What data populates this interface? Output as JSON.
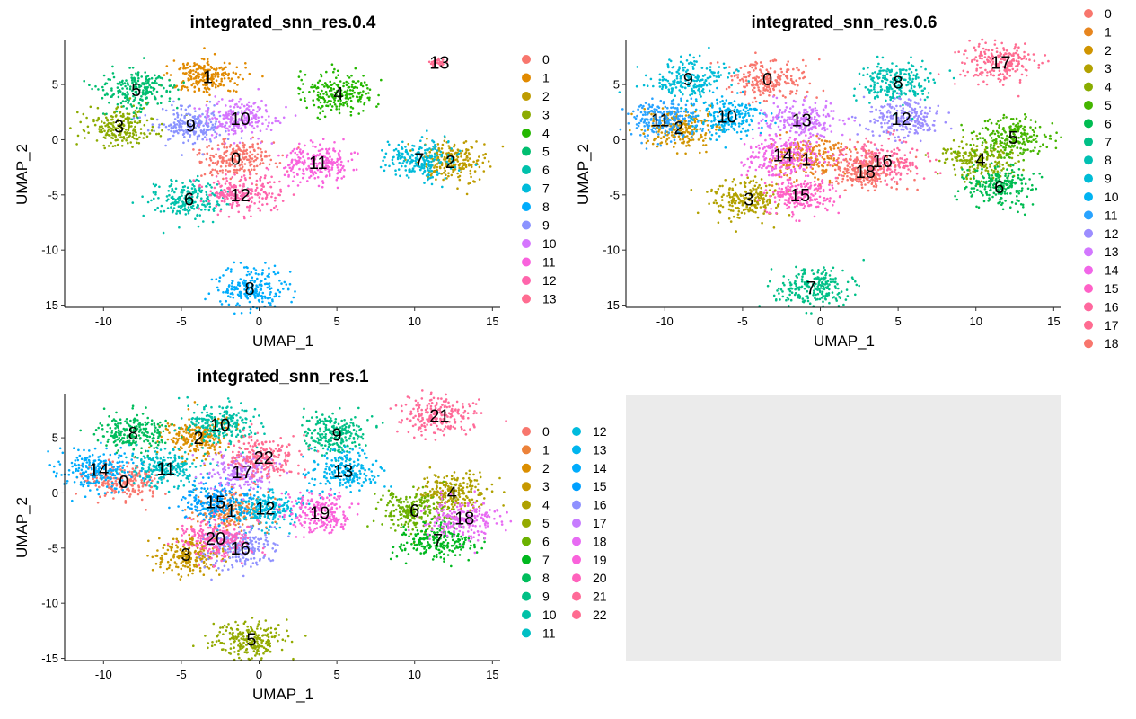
{
  "chart_data": [
    {
      "type": "scatter",
      "title": "integrated_snn_res.0.4",
      "xlabel": "UMAP_1",
      "ylabel": "UMAP_2",
      "xlim": [
        -12.5,
        15.5
      ],
      "ylim": [
        -15.2,
        9.0
      ],
      "xticks": [
        -10,
        -5,
        0,
        5,
        10,
        15
      ],
      "yticks": [
        5,
        0,
        -5,
        -10,
        -15
      ],
      "legend_placement": "right",
      "legend_columns": 1,
      "legend": [
        "0",
        "1",
        "2",
        "3",
        "4",
        "5",
        "6",
        "7",
        "8",
        "9",
        "10",
        "11",
        "12",
        "13"
      ],
      "colors": [
        "#F8766D",
        "#E18A00",
        "#BE9C00",
        "#8CAB00",
        "#24B700",
        "#00BE70",
        "#00C1AB",
        "#00BBDA",
        "#00ACFC",
        "#8B93FF",
        "#D575FE",
        "#F962DD",
        "#FF65AC",
        "#FF6C91"
      ],
      "clusters": [
        {
          "label": "0",
          "x": -1.5,
          "y": -1.7
        },
        {
          "label": "1",
          "x": -3.3,
          "y": 5.7
        },
        {
          "label": "2",
          "x": 12.3,
          "y": -2.0
        },
        {
          "label": "3",
          "x": -9.0,
          "y": 1.2
        },
        {
          "label": "4",
          "x": 5.1,
          "y": 4.2
        },
        {
          "label": "5",
          "x": -7.9,
          "y": 4.5
        },
        {
          "label": "6",
          "x": -4.5,
          "y": -5.4
        },
        {
          "label": "7",
          "x": 10.3,
          "y": -1.8
        },
        {
          "label": "8",
          "x": -0.6,
          "y": -13.5
        },
        {
          "label": "9",
          "x": -4.4,
          "y": 1.3
        },
        {
          "label": "10",
          "x": -1.2,
          "y": 1.9
        },
        {
          "label": "11",
          "x": 3.8,
          "y": -2.1
        },
        {
          "label": "12",
          "x": -1.2,
          "y": -5.0
        },
        {
          "label": "13",
          "x": 11.6,
          "y": 7.0
        }
      ]
    },
    {
      "type": "scatter",
      "title": "integrated_snn_res.0.6",
      "xlabel": "UMAP_1",
      "ylabel": "UMAP_2",
      "xlim": [
        -12.5,
        15.5
      ],
      "ylim": [
        -15.2,
        9.0
      ],
      "xticks": [
        -10,
        -5,
        0,
        5,
        10,
        15
      ],
      "yticks": [
        5,
        0,
        -5,
        -10,
        -15
      ],
      "legend_placement": "right",
      "legend_columns": 1,
      "legend": [
        "0",
        "1",
        "2",
        "3",
        "4",
        "5",
        "6",
        "7",
        "8",
        "9",
        "10",
        "11",
        "12",
        "13",
        "14",
        "15",
        "16",
        "17",
        "18"
      ],
      "colors": [
        "#F8766D",
        "#E7851E",
        "#D09400",
        "#B2A100",
        "#89AC00",
        "#45B500",
        "#00BC51",
        "#00C087",
        "#00C0B2",
        "#00BCD6",
        "#00B3F2",
        "#29A3FF",
        "#9C8DFF",
        "#D277FF",
        "#F166E8",
        "#FF61C7",
        "#FF689E",
        "#FF6C91",
        "#F8766D"
      ],
      "clusters": [
        {
          "label": "0",
          "x": -3.4,
          "y": 5.5
        },
        {
          "label": "1",
          "x": -0.9,
          "y": -1.8
        },
        {
          "label": "2",
          "x": -9.1,
          "y": 1.1
        },
        {
          "label": "3",
          "x": -4.6,
          "y": -5.4
        },
        {
          "label": "4",
          "x": 10.3,
          "y": -1.8
        },
        {
          "label": "5",
          "x": 12.4,
          "y": 0.2
        },
        {
          "label": "6",
          "x": 11.5,
          "y": -4.3
        },
        {
          "label": "7",
          "x": -0.6,
          "y": -13.4
        },
        {
          "label": "8",
          "x": 5.0,
          "y": 5.2
        },
        {
          "label": "9",
          "x": -8.5,
          "y": 5.5
        },
        {
          "label": "10",
          "x": -6.0,
          "y": 2.1
        },
        {
          "label": "11",
          "x": -10.3,
          "y": 1.8
        },
        {
          "label": "12",
          "x": 5.2,
          "y": 1.9
        },
        {
          "label": "13",
          "x": -1.2,
          "y": 1.8
        },
        {
          "label": "14",
          "x": -2.4,
          "y": -1.4
        },
        {
          "label": "15",
          "x": -1.3,
          "y": -5.0
        },
        {
          "label": "16",
          "x": 4.0,
          "y": -1.9
        },
        {
          "label": "17",
          "x": 11.6,
          "y": 7.0
        },
        {
          "label": "18",
          "x": 2.9,
          "y": -2.9
        }
      ]
    },
    {
      "type": "scatter",
      "title": "integrated_snn_res.1",
      "xlabel": "UMAP_1",
      "ylabel": "UMAP_2",
      "xlim": [
        -12.5,
        15.5
      ],
      "ylim": [
        -15.2,
        9.0
      ],
      "xticks": [
        -10,
        -5,
        0,
        5,
        10,
        15
      ],
      "yticks": [
        5,
        0,
        -5,
        -10,
        -15
      ],
      "legend_placement": "right",
      "legend_columns": 2,
      "legend": [
        "0",
        "1",
        "2",
        "3",
        "4",
        "5",
        "6",
        "7",
        "8",
        "9",
        "10",
        "11",
        "12",
        "13",
        "14",
        "15",
        "16",
        "17",
        "18",
        "19",
        "20",
        "21",
        "22"
      ],
      "colors": [
        "#F8766D",
        "#EC8239",
        "#DB8E00",
        "#C79800",
        "#AFA100",
        "#93AA00",
        "#6BB100",
        "#00B81F",
        "#00BD5C",
        "#00C085",
        "#00C1A7",
        "#00BFC4",
        "#00BBDD",
        "#00B5EE",
        "#00ACFC",
        "#00A0FF",
        "#8F91FF",
        "#C77CFF",
        "#E76BF3",
        "#FA62DB",
        "#FF62BC",
        "#FF6A98",
        "#FF6C91"
      ],
      "clusters": [
        {
          "label": "0",
          "x": -8.7,
          "y": 1.0
        },
        {
          "label": "1",
          "x": -1.8,
          "y": -1.6
        },
        {
          "label": "2",
          "x": -3.9,
          "y": 5.0
        },
        {
          "label": "3",
          "x": -4.7,
          "y": -5.6
        },
        {
          "label": "4",
          "x": 12.4,
          "y": 0.0
        },
        {
          "label": "5",
          "x": -0.5,
          "y": -13.3
        },
        {
          "label": "6",
          "x": 10.0,
          "y": -1.6
        },
        {
          "label": "7",
          "x": 11.5,
          "y": -4.3
        },
        {
          "label": "8",
          "x": -8.1,
          "y": 5.4
        },
        {
          "label": "9",
          "x": 5.0,
          "y": 5.3
        },
        {
          "label": "10",
          "x": -2.5,
          "y": 6.2
        },
        {
          "label": "11",
          "x": -6.0,
          "y": 2.2
        },
        {
          "label": "12",
          "x": 0.4,
          "y": -1.4
        },
        {
          "label": "13",
          "x": 5.4,
          "y": 2.0
        },
        {
          "label": "14",
          "x": -10.3,
          "y": 2.1
        },
        {
          "label": "15",
          "x": -2.8,
          "y": -0.8
        },
        {
          "label": "16",
          "x": -1.2,
          "y": -5.0
        },
        {
          "label": "17",
          "x": -1.1,
          "y": 1.9
        },
        {
          "label": "18",
          "x": 13.2,
          "y": -2.3
        },
        {
          "label": "19",
          "x": 3.9,
          "y": -1.8
        },
        {
          "label": "20",
          "x": -2.8,
          "y": -4.1
        },
        {
          "label": "21",
          "x": 11.6,
          "y": 7.0
        },
        {
          "label": "22",
          "x": 0.3,
          "y": 3.2
        }
      ]
    }
  ],
  "empty_panel_fill": "#EBEBEB"
}
